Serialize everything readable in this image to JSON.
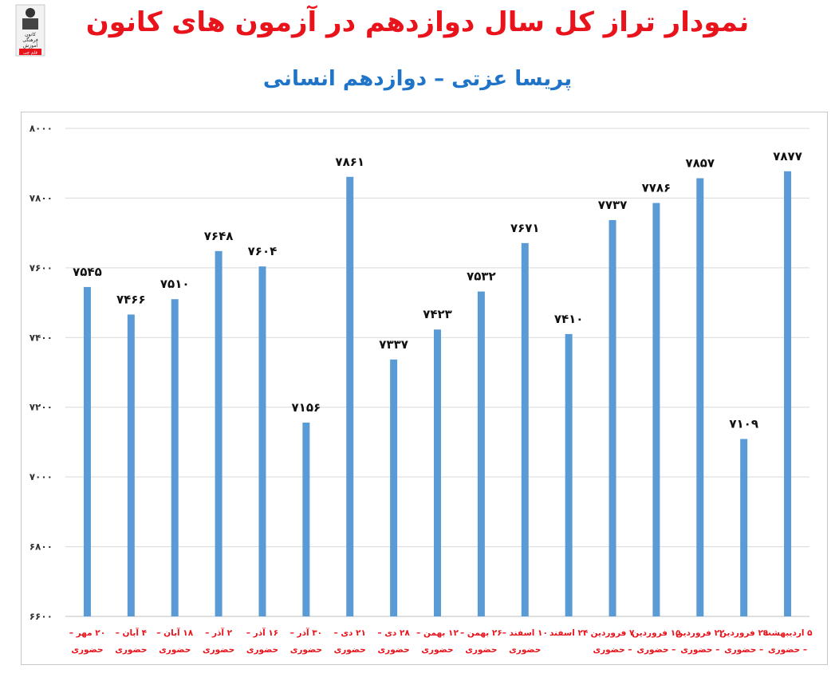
{
  "header": {
    "title": "نمودار تراز کل سال دوازدهم در آزمون های کانون",
    "subtitle": "پریسا عزتی – دوازدهم انسانی",
    "logo_lines": [
      "کانون",
      "فرهنگی",
      "آموزش",
      "قلم چی"
    ]
  },
  "chart_data": {
    "type": "bar",
    "title": "نمودار تراز کل سال دوازدهم در آزمون های کانون",
    "subtitle": "پریسا عزتی – دوازدهم انسانی",
    "xlabel": "",
    "ylabel": "",
    "ylim": [
      6600,
      8000
    ],
    "yticks": [
      6600,
      6800,
      7000,
      7200,
      7400,
      7600,
      7800,
      8000
    ],
    "ytick_labels": [
      "۶۶۰۰",
      "۶۸۰۰",
      "۷۰۰۰",
      "۷۲۰۰",
      "۷۴۰۰",
      "۷۶۰۰",
      "۷۸۰۰",
      "۸۰۰۰"
    ],
    "grid": true,
    "bar_color": "#5b9bd5",
    "categories": [
      [
        "۲۰ مهر –",
        "حضوری"
      ],
      [
        "۴ آبان –",
        "حضوری"
      ],
      [
        "۱۸ آبان –",
        "حضوری"
      ],
      [
        "۲ آذر –",
        "حضوری"
      ],
      [
        "۱۶ آذر –",
        "حضوری"
      ],
      [
        "۳۰ آذر –",
        "حضوری"
      ],
      [
        "۲۱ دی –",
        "حضوری"
      ],
      [
        "۲۸ دی –",
        "حضوری"
      ],
      [
        "۱۲ بهمن –",
        "حضوری"
      ],
      [
        "۲۶ بهمن –",
        "حضوری"
      ],
      [
        "۱۰ اسفند –",
        "حضوری"
      ],
      [
        "۲۴ اسفند",
        ""
      ],
      [
        "۷ فروردین",
        "– حضوری"
      ],
      [
        "۱۵ فروردین",
        "– حضوری"
      ],
      [
        "۲۲ فروردین",
        "– حضوری"
      ],
      [
        "۲۹ فروردین",
        "– حضوری"
      ],
      [
        "۵ اردیبهشت",
        "– حضوری"
      ]
    ],
    "values": [
      7545,
      7466,
      7510,
      7648,
      7604,
      7156,
      7861,
      7337,
      7423,
      7532,
      7671,
      7410,
      7737,
      7786,
      7857,
      7109,
      7877
    ],
    "value_labels": [
      "۷۵۴۵",
      "۷۴۶۶",
      "۷۵۱۰",
      "۷۶۴۸",
      "۷۶۰۴",
      "۷۱۵۶",
      "۷۸۶۱",
      "۷۳۳۷",
      "۷۴۲۳",
      "۷۵۳۲",
      "۷۶۷۱",
      "۷۴۱۰",
      "۷۷۳۷",
      "۷۷۸۶",
      "۷۸۵۷",
      "۷۱۰۹",
      "۷۸۷۷"
    ]
  }
}
